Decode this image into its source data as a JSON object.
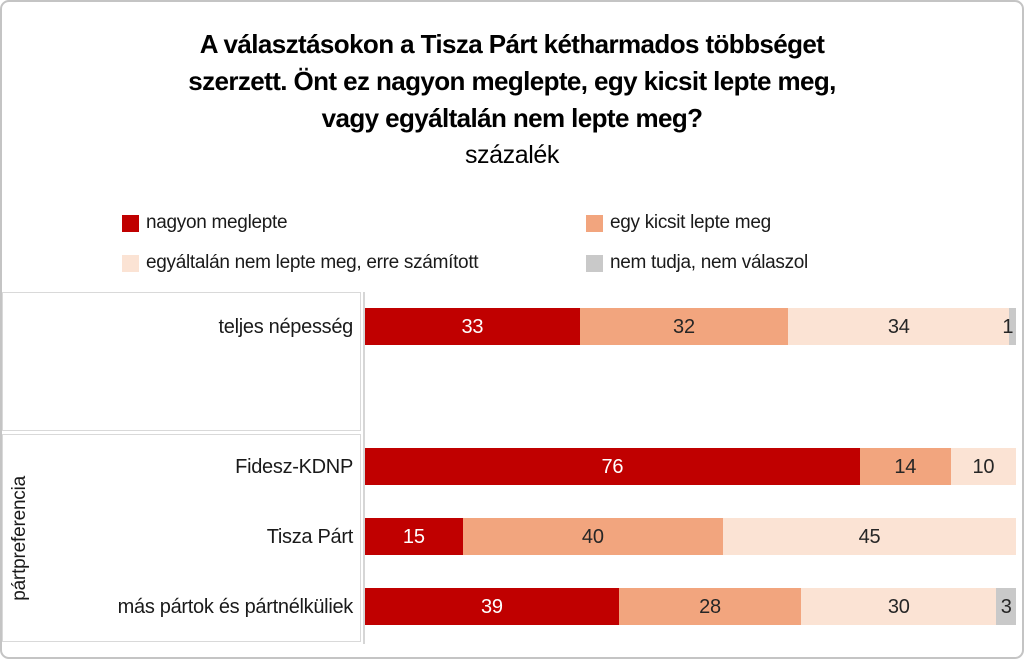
{
  "title": {
    "lines": [
      "A választásokon a Tisza Párt kétharmados többséget",
      "szerzett. Önt ez nagyon meglepte, egy kicsit lepte meg,",
      "vagy egyáltalán nem lepte meg?"
    ],
    "subtitle": "százalék"
  },
  "axis": {
    "group_label": "pártpreferencia"
  },
  "chart_data": {
    "type": "bar",
    "orientation": "horizontal",
    "stacked": true,
    "unit": "percent",
    "xlim": [
      0,
      100
    ],
    "grid": false,
    "legend_position": "top",
    "value_labels_shown": true,
    "categories": [
      "teljes népesség",
      "Fidesz-KDNP",
      "Tisza Párt",
      "más pártok és pártnélküliek"
    ],
    "category_groups": [
      {
        "label": "",
        "categories": [
          "teljes népesség"
        ]
      },
      {
        "label": "pártpreferencia",
        "categories": [
          "Fidesz-KDNP",
          "Tisza Párt",
          "más pártok és pártnélküliek"
        ]
      }
    ],
    "series": [
      {
        "name": "nagyon meglepte",
        "color": "#c00000",
        "label_color": "#ffffff",
        "values": [
          33,
          76,
          15,
          39
        ]
      },
      {
        "name": "egy kicsit lepte meg",
        "color": "#f2a57e",
        "label_color": "#262626",
        "values": [
          32,
          14,
          40,
          28
        ]
      },
      {
        "name": "egyáltalán nem lepte meg, erre számított",
        "color": "#fbe3d4",
        "label_color": "#262626",
        "values": [
          34,
          10,
          45,
          30
        ]
      },
      {
        "name": "nem tudja, nem válaszol",
        "color": "#c9c9c9",
        "label_color": "#262626",
        "values": [
          1,
          0,
          0,
          3
        ]
      }
    ]
  },
  "colors": {
    "box_border": "#d9d9d9",
    "axis_line": "#d6d6d6",
    "frame_border": "#c4c4c4"
  }
}
